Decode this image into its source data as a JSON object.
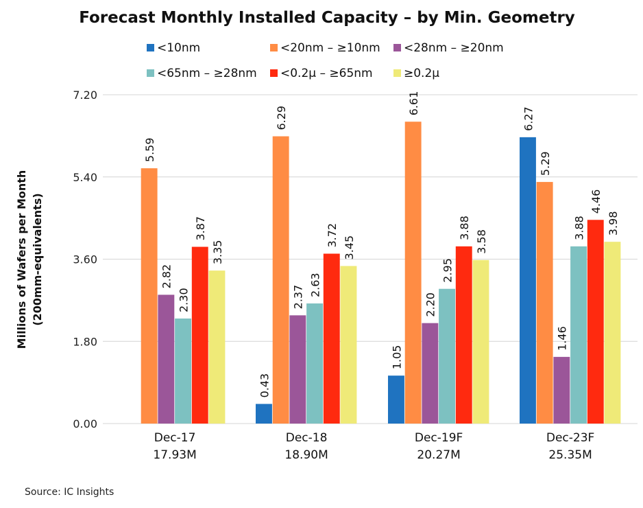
{
  "source": "Source:  IC Insights",
  "chart_data": {
    "type": "bar",
    "title": "Forecast Monthly Installed Capacity – by Min. Geometry",
    "ylabel": [
      "Millions of Wafers per Month",
      "(200mm-equivalents)"
    ],
    "xlabel": "",
    "ylim": [
      0,
      7.2
    ],
    "yticks": [
      "0.00",
      "1.80",
      "3.60",
      "5.40",
      "7.20"
    ],
    "grid": true,
    "legend": "top",
    "categories": [
      [
        "Dec-17",
        "17.93M"
      ],
      [
        "Dec-18",
        "18.90M"
      ],
      [
        "Dec-19F",
        "20.27M"
      ],
      [
        "Dec-23F",
        "25.35M"
      ]
    ],
    "series": [
      {
        "name": "<10nm",
        "color": "#1F73C0",
        "values": [
          null,
          0.43,
          1.05,
          6.27
        ],
        "labels": [
          "",
          "0.43",
          "1.05",
          "6.27"
        ]
      },
      {
        "name": "<20nm – ≥10nm",
        "color": "#FF8C44",
        "values": [
          5.59,
          6.29,
          6.61,
          5.29
        ],
        "labels": [
          "5.59",
          "6.29",
          "6.61",
          "5.29"
        ]
      },
      {
        "name": "<28nm – ≥20nm",
        "color": "#9B5699",
        "values": [
          2.82,
          2.37,
          2.2,
          1.46
        ],
        "labels": [
          "2.82",
          "2.37",
          "2.20",
          "1.46"
        ]
      },
      {
        "name": "<65nm – ≥28nm",
        "color": "#7DC1C1",
        "values": [
          2.3,
          2.63,
          2.95,
          3.88
        ],
        "labels": [
          "2.30",
          "2.63",
          "2.95",
          "3.88"
        ]
      },
      {
        "name": "<0.2µ – ≥65nm",
        "color": "#FF2A0F",
        "values": [
          3.87,
          3.72,
          3.88,
          4.46
        ],
        "labels": [
          "3.87",
          "3.72",
          "3.88",
          "4.46"
        ]
      },
      {
        "name": "≥0.2µ",
        "color": "#EFEA78",
        "values": [
          3.35,
          3.45,
          3.58,
          3.98
        ],
        "labels": [
          "3.35",
          "3.45",
          "3.58",
          "3.98"
        ]
      }
    ]
  }
}
